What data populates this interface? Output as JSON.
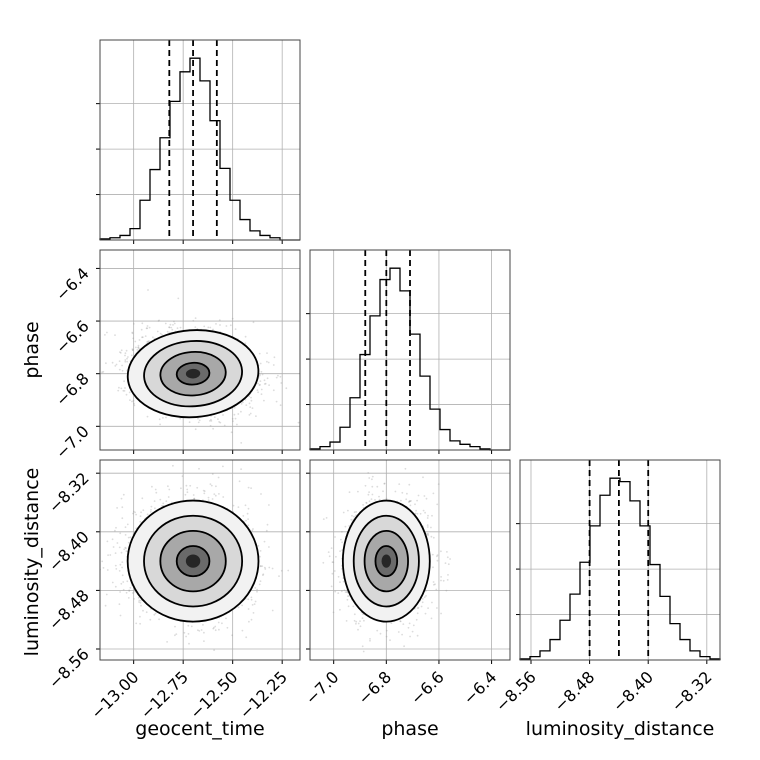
{
  "chart_data": {
    "type": "corner",
    "parameters": [
      "geocent_time",
      "phase",
      "luminosity_distance"
    ],
    "axis_labels": {
      "x": [
        "geocent_time",
        "phase",
        "luminosity_distance"
      ],
      "y_row1": "phase",
      "y_row2": "luminosity_distance"
    },
    "ranges": {
      "geocent_time": [
        -13.17,
        -12.16
      ],
      "phase": [
        -7.09,
        -6.33
      ],
      "luminosity_distance": [
        -8.575,
        -8.302
      ]
    },
    "ticks": {
      "geocent_time": {
        "values": [
          -13.0,
          -12.75,
          -12.5,
          -12.25
        ],
        "labels": [
          "−13.00",
          "−12.75",
          "−12.50",
          "−12.25"
        ]
      },
      "phase": {
        "values": [
          -7.0,
          -6.8,
          -6.6,
          -6.4
        ],
        "labels": [
          "−7.0",
          "−6.8",
          "−6.6",
          "−6.4"
        ]
      },
      "luminosity_distance": {
        "values": [
          -8.56,
          -8.48,
          -8.4,
          -8.32
        ],
        "labels": [
          "−8.56",
          "−8.48",
          "−8.40",
          "−8.32"
        ]
      }
    },
    "quantiles": {
      "geocent_time": [
        -12.82,
        -12.7,
        -12.58
      ],
      "phase": [
        -6.88,
        -6.8,
        -6.71
      ],
      "luminosity_distance": [
        -8.48,
        -8.44,
        -8.4
      ]
    },
    "histograms": {
      "geocent_time": [
        1,
        2,
        4,
        10,
        35,
        62,
        90,
        122,
        148,
        160,
        140,
        105,
        63,
        35,
        18,
        8,
        4,
        2,
        0,
        0
      ],
      "phase": [
        1,
        3,
        7,
        20,
        46,
        84,
        118,
        150,
        160,
        140,
        102,
        65,
        36,
        18,
        8,
        5,
        3,
        1,
        0,
        0
      ],
      "luminosity_distance": [
        1,
        3,
        8,
        18,
        35,
        58,
        86,
        118,
        145,
        160,
        157,
        140,
        118,
        84,
        56,
        32,
        18,
        8,
        3,
        1
      ]
    },
    "scatter_panels": [
      {
        "x": "geocent_time",
        "y": "phase",
        "center": [
          -12.7,
          -6.8
        ],
        "sd": [
          0.14,
          0.07
        ],
        "rho": 0.1
      },
      {
        "x": "geocent_time",
        "y": "luminosity_distance",
        "center": [
          -12.7,
          -8.44
        ],
        "sd": [
          0.14,
          0.035
        ],
        "rho": 0.0
      },
      {
        "x": "phase",
        "y": "luminosity_distance",
        "center": [
          -6.8,
          -8.44
        ],
        "sd": [
          0.07,
          0.035
        ],
        "rho": 0.0
      }
    ],
    "contour_levels_sigma": [
      0.5,
      1.0,
      1.5,
      2.0
    ],
    "grid": true,
    "colors": {
      "points": "#888888",
      "lines": "#000000",
      "grid": "#b0b0b0"
    }
  }
}
